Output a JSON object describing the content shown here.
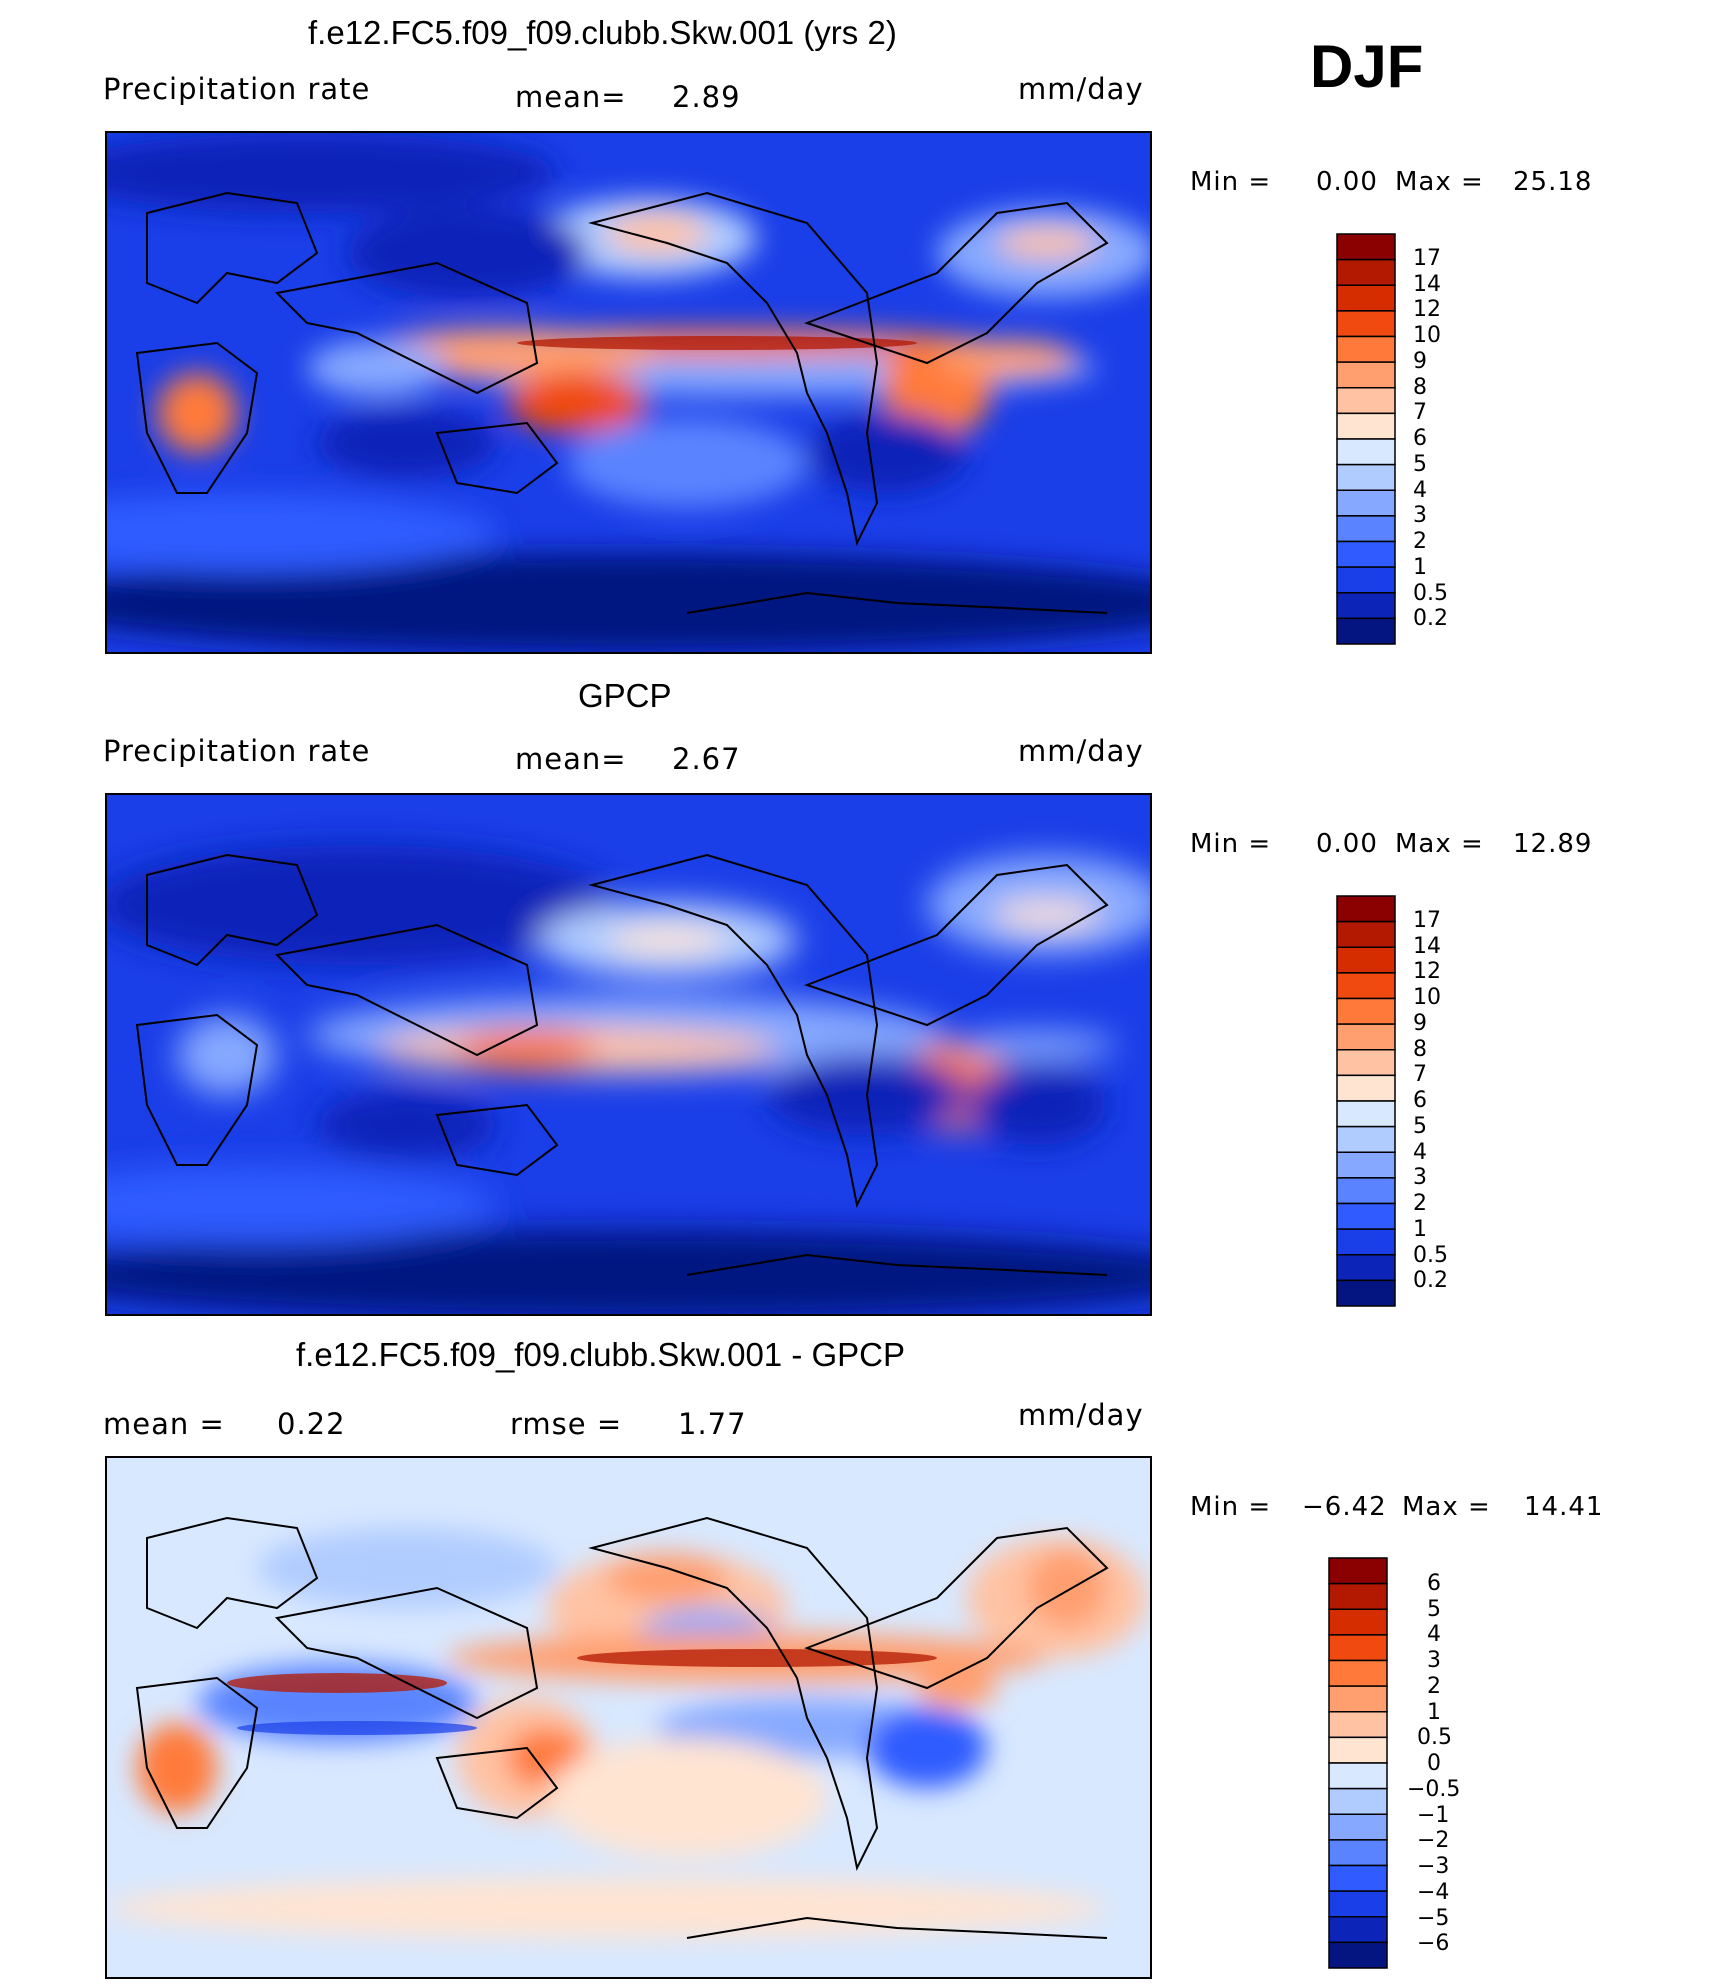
{
  "season": "DJF",
  "panels": [
    {
      "title": "f.e12.FC5.f09_f09.clubb.Skw.001 (yrs 2)",
      "left_label": "Precipitation rate",
      "mid_key": "mean=",
      "mid_value": "2.89",
      "units": "mm/day",
      "min_label": "Min =",
      "min_value": "0.00",
      "max_label": "Max =",
      "max_value": "25.18",
      "legend": [
        "17",
        "14",
        "12",
        "10",
        "9",
        "8",
        "7",
        "6",
        "5",
        "4",
        "3",
        "2",
        "1",
        "0.5",
        "0.2"
      ]
    },
    {
      "title": "GPCP",
      "left_label": "Precipitation rate",
      "mid_key": "mean=",
      "mid_value": "2.67",
      "units": "mm/day",
      "min_label": "Min =",
      "min_value": "0.00",
      "max_label": "Max =",
      "max_value": "12.89",
      "legend": [
        "17",
        "14",
        "12",
        "10",
        "9",
        "8",
        "7",
        "6",
        "5",
        "4",
        "3",
        "2",
        "1",
        "0.5",
        "0.2"
      ]
    },
    {
      "title": "f.e12.FC5.f09_f09.clubb.Skw.001 - GPCP",
      "left_key": "mean =",
      "left_value": "0.22",
      "mid_key": "rmse =",
      "mid_value": "1.77",
      "units": "mm/day",
      "min_label": "Min =",
      "min_value": "−6.42",
      "max_label": "Max =",
      "max_value": "14.41",
      "legend": [
        "6",
        "5",
        "4",
        "3",
        "2",
        "1",
        "0.5",
        "0",
        "−0.5",
        "−1",
        "−2",
        "−3",
        "−4",
        "−5",
        "−6"
      ]
    }
  ],
  "colors": {
    "precip_scale": [
      "#8b0000",
      "#b31800",
      "#d62d00",
      "#f04a10",
      "#ff7a3a",
      "#ff9f70",
      "#ffc2a3",
      "#ffe4d2",
      "#d8e8ff",
      "#b0ccff",
      "#86a9ff",
      "#5a84ff",
      "#2f5bff",
      "#1a3ee8",
      "#0c24b8",
      "#041480"
    ],
    "diff_scale": [
      "#8b0000",
      "#b31800",
      "#d62d00",
      "#f04a10",
      "#ff7a3a",
      "#ff9f70",
      "#ffc2a3",
      "#ffe4d2",
      "#d8e8ff",
      "#b0ccff",
      "#86a9ff",
      "#5a84ff",
      "#2f5bff",
      "#1a3ee8",
      "#0c24b8",
      "#041480"
    ]
  }
}
